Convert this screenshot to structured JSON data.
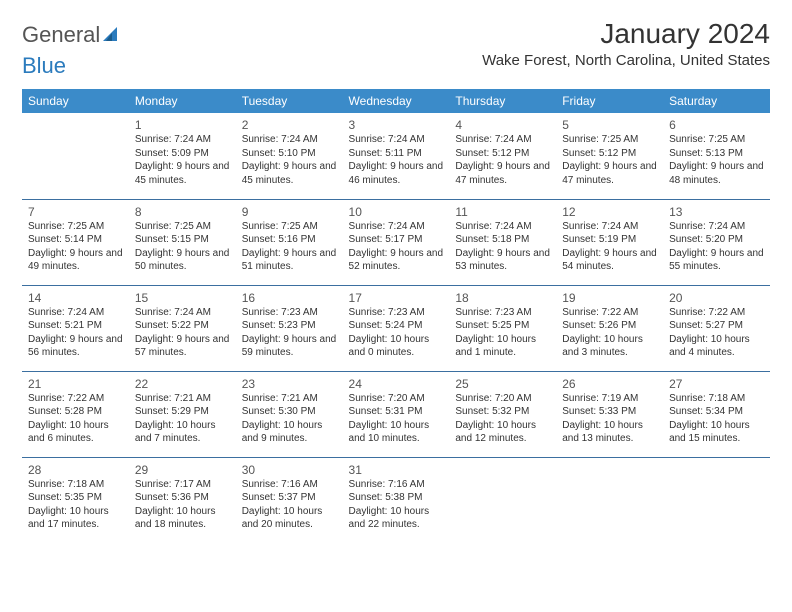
{
  "logo": {
    "part1": "General",
    "part2": "Blue"
  },
  "title": "January 2024",
  "location": "Wake Forest, North Carolina, United States",
  "colors": {
    "header_bg": "#3b8bc9",
    "header_text": "#ffffff",
    "row_border": "#3b6fa0",
    "body_text": "#333333",
    "logo_gray": "#555555",
    "logo_blue": "#2b7bbd"
  },
  "fonts": {
    "title_size_pt": 28,
    "location_size_pt": 15,
    "day_header_size_pt": 12,
    "day_num_size_pt": 12,
    "cell_text_size_pt": 10
  },
  "day_headers": [
    "Sunday",
    "Monday",
    "Tuesday",
    "Wednesday",
    "Thursday",
    "Friday",
    "Saturday"
  ],
  "weeks": [
    [
      {
        "day": "",
        "sunrise": "",
        "sunset": "",
        "daylight": ""
      },
      {
        "day": "1",
        "sunrise": "Sunrise: 7:24 AM",
        "sunset": "Sunset: 5:09 PM",
        "daylight": "Daylight: 9 hours and 45 minutes."
      },
      {
        "day": "2",
        "sunrise": "Sunrise: 7:24 AM",
        "sunset": "Sunset: 5:10 PM",
        "daylight": "Daylight: 9 hours and 45 minutes."
      },
      {
        "day": "3",
        "sunrise": "Sunrise: 7:24 AM",
        "sunset": "Sunset: 5:11 PM",
        "daylight": "Daylight: 9 hours and 46 minutes."
      },
      {
        "day": "4",
        "sunrise": "Sunrise: 7:24 AM",
        "sunset": "Sunset: 5:12 PM",
        "daylight": "Daylight: 9 hours and 47 minutes."
      },
      {
        "day": "5",
        "sunrise": "Sunrise: 7:25 AM",
        "sunset": "Sunset: 5:12 PM",
        "daylight": "Daylight: 9 hours and 47 minutes."
      },
      {
        "day": "6",
        "sunrise": "Sunrise: 7:25 AM",
        "sunset": "Sunset: 5:13 PM",
        "daylight": "Daylight: 9 hours and 48 minutes."
      }
    ],
    [
      {
        "day": "7",
        "sunrise": "Sunrise: 7:25 AM",
        "sunset": "Sunset: 5:14 PM",
        "daylight": "Daylight: 9 hours and 49 minutes."
      },
      {
        "day": "8",
        "sunrise": "Sunrise: 7:25 AM",
        "sunset": "Sunset: 5:15 PM",
        "daylight": "Daylight: 9 hours and 50 minutes."
      },
      {
        "day": "9",
        "sunrise": "Sunrise: 7:25 AM",
        "sunset": "Sunset: 5:16 PM",
        "daylight": "Daylight: 9 hours and 51 minutes."
      },
      {
        "day": "10",
        "sunrise": "Sunrise: 7:24 AM",
        "sunset": "Sunset: 5:17 PM",
        "daylight": "Daylight: 9 hours and 52 minutes."
      },
      {
        "day": "11",
        "sunrise": "Sunrise: 7:24 AM",
        "sunset": "Sunset: 5:18 PM",
        "daylight": "Daylight: 9 hours and 53 minutes."
      },
      {
        "day": "12",
        "sunrise": "Sunrise: 7:24 AM",
        "sunset": "Sunset: 5:19 PM",
        "daylight": "Daylight: 9 hours and 54 minutes."
      },
      {
        "day": "13",
        "sunrise": "Sunrise: 7:24 AM",
        "sunset": "Sunset: 5:20 PM",
        "daylight": "Daylight: 9 hours and 55 minutes."
      }
    ],
    [
      {
        "day": "14",
        "sunrise": "Sunrise: 7:24 AM",
        "sunset": "Sunset: 5:21 PM",
        "daylight": "Daylight: 9 hours and 56 minutes."
      },
      {
        "day": "15",
        "sunrise": "Sunrise: 7:24 AM",
        "sunset": "Sunset: 5:22 PM",
        "daylight": "Daylight: 9 hours and 57 minutes."
      },
      {
        "day": "16",
        "sunrise": "Sunrise: 7:23 AM",
        "sunset": "Sunset: 5:23 PM",
        "daylight": "Daylight: 9 hours and 59 minutes."
      },
      {
        "day": "17",
        "sunrise": "Sunrise: 7:23 AM",
        "sunset": "Sunset: 5:24 PM",
        "daylight": "Daylight: 10 hours and 0 minutes."
      },
      {
        "day": "18",
        "sunrise": "Sunrise: 7:23 AM",
        "sunset": "Sunset: 5:25 PM",
        "daylight": "Daylight: 10 hours and 1 minute."
      },
      {
        "day": "19",
        "sunrise": "Sunrise: 7:22 AM",
        "sunset": "Sunset: 5:26 PM",
        "daylight": "Daylight: 10 hours and 3 minutes."
      },
      {
        "day": "20",
        "sunrise": "Sunrise: 7:22 AM",
        "sunset": "Sunset: 5:27 PM",
        "daylight": "Daylight: 10 hours and 4 minutes."
      }
    ],
    [
      {
        "day": "21",
        "sunrise": "Sunrise: 7:22 AM",
        "sunset": "Sunset: 5:28 PM",
        "daylight": "Daylight: 10 hours and 6 minutes."
      },
      {
        "day": "22",
        "sunrise": "Sunrise: 7:21 AM",
        "sunset": "Sunset: 5:29 PM",
        "daylight": "Daylight: 10 hours and 7 minutes."
      },
      {
        "day": "23",
        "sunrise": "Sunrise: 7:21 AM",
        "sunset": "Sunset: 5:30 PM",
        "daylight": "Daylight: 10 hours and 9 minutes."
      },
      {
        "day": "24",
        "sunrise": "Sunrise: 7:20 AM",
        "sunset": "Sunset: 5:31 PM",
        "daylight": "Daylight: 10 hours and 10 minutes."
      },
      {
        "day": "25",
        "sunrise": "Sunrise: 7:20 AM",
        "sunset": "Sunset: 5:32 PM",
        "daylight": "Daylight: 10 hours and 12 minutes."
      },
      {
        "day": "26",
        "sunrise": "Sunrise: 7:19 AM",
        "sunset": "Sunset: 5:33 PM",
        "daylight": "Daylight: 10 hours and 13 minutes."
      },
      {
        "day": "27",
        "sunrise": "Sunrise: 7:18 AM",
        "sunset": "Sunset: 5:34 PM",
        "daylight": "Daylight: 10 hours and 15 minutes."
      }
    ],
    [
      {
        "day": "28",
        "sunrise": "Sunrise: 7:18 AM",
        "sunset": "Sunset: 5:35 PM",
        "daylight": "Daylight: 10 hours and 17 minutes."
      },
      {
        "day": "29",
        "sunrise": "Sunrise: 7:17 AM",
        "sunset": "Sunset: 5:36 PM",
        "daylight": "Daylight: 10 hours and 18 minutes."
      },
      {
        "day": "30",
        "sunrise": "Sunrise: 7:16 AM",
        "sunset": "Sunset: 5:37 PM",
        "daylight": "Daylight: 10 hours and 20 minutes."
      },
      {
        "day": "31",
        "sunrise": "Sunrise: 7:16 AM",
        "sunset": "Sunset: 5:38 PM",
        "daylight": "Daylight: 10 hours and 22 minutes."
      },
      {
        "day": "",
        "sunrise": "",
        "sunset": "",
        "daylight": ""
      },
      {
        "day": "",
        "sunrise": "",
        "sunset": "",
        "daylight": ""
      },
      {
        "day": "",
        "sunrise": "",
        "sunset": "",
        "daylight": ""
      }
    ]
  ]
}
